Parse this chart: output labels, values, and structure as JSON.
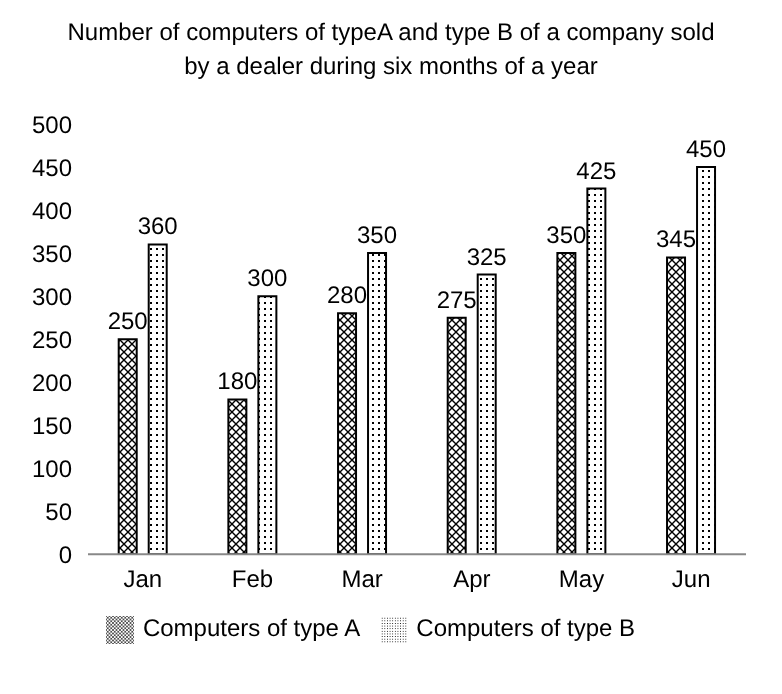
{
  "chart_data": {
    "type": "bar",
    "title": "Number of computers of typeA and type B of a company sold by a dealer during six months of a year",
    "categories": [
      "Jan",
      "Feb",
      "Mar",
      "Apr",
      "May",
      "Jun"
    ],
    "series": [
      {
        "name": "Computers of type A",
        "color": "#000000",
        "values": [
          250,
          180,
          280,
          275,
          350,
          345
        ]
      },
      {
        "name": "Computers of type B",
        "color": "#000000",
        "values": [
          360,
          300,
          350,
          325,
          425,
          450
        ]
      }
    ],
    "ylim": [
      0,
      500
    ],
    "yticks": [
      0,
      50,
      100,
      150,
      200,
      250,
      300,
      350,
      400,
      450,
      500
    ],
    "grid": false,
    "legend": "bottom",
    "data_labels": true
  }
}
